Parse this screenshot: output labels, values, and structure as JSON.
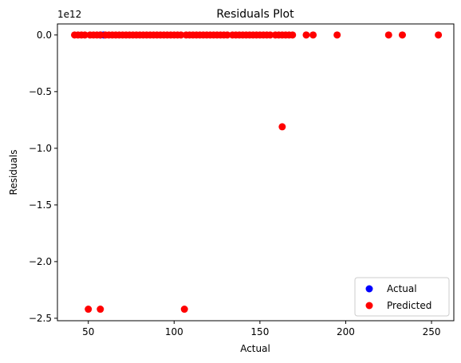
{
  "chart_data": {
    "type": "scatter",
    "title": "Residuals Plot",
    "xlabel": "Actual",
    "ylabel": "Residuals",
    "y_offset_label": "1e12",
    "xlim": [
      32,
      263
    ],
    "ylim": [
      -2.5217,
      0.0974
    ],
    "x_ticks": [
      50,
      100,
      150,
      200,
      250
    ],
    "x_tick_labels": [
      "50",
      "100",
      "150",
      "200",
      "250"
    ],
    "y_ticks": [
      0.0,
      -0.5,
      -1.0,
      -1.5,
      -2.0,
      -2.5
    ],
    "y_tick_labels": [
      "0.0",
      "−0.5",
      "−1.0",
      "−1.5",
      "−2.0",
      "−2.5"
    ],
    "legend_position": "lower-right",
    "grid": false,
    "series": [
      {
        "name": "Actual",
        "color": "#0000ff",
        "x": [
          57,
          59
        ],
        "y": [
          0,
          0
        ]
      },
      {
        "name": "Predicted",
        "color": "#ff0000",
        "x": [
          42,
          44,
          46,
          48,
          51,
          53,
          55,
          57,
          60,
          62,
          64,
          66,
          68,
          70,
          72,
          74,
          76,
          78,
          80,
          82,
          84,
          86,
          88,
          90,
          92,
          94,
          96,
          98,
          100,
          102,
          104,
          107,
          109,
          111,
          113,
          115,
          117,
          119,
          121,
          123,
          125,
          127,
          129,
          131,
          134,
          136,
          138,
          140,
          142,
          144,
          146,
          148,
          150,
          152,
          154,
          156,
          159,
          161,
          163,
          165,
          167,
          169,
          177,
          181,
          195,
          225,
          233,
          254,
          163,
          50,
          57,
          106
        ],
        "y": [
          0,
          0,
          0,
          0,
          0,
          0,
          0,
          0,
          0,
          0,
          0,
          0,
          0,
          0,
          0,
          0,
          0,
          0,
          0,
          0,
          0,
          0,
          0,
          0,
          0,
          0,
          0,
          0,
          0,
          0,
          0,
          0,
          0,
          0,
          0,
          0,
          0,
          0,
          0,
          0,
          0,
          0,
          0,
          0,
          0,
          0,
          0,
          0,
          0,
          0,
          0,
          0,
          0,
          0,
          0,
          0,
          0,
          0,
          0,
          0,
          0,
          0,
          0,
          0,
          0,
          0,
          0,
          0,
          -0.81,
          -2.42,
          -2.42,
          -2.42
        ]
      }
    ]
  }
}
